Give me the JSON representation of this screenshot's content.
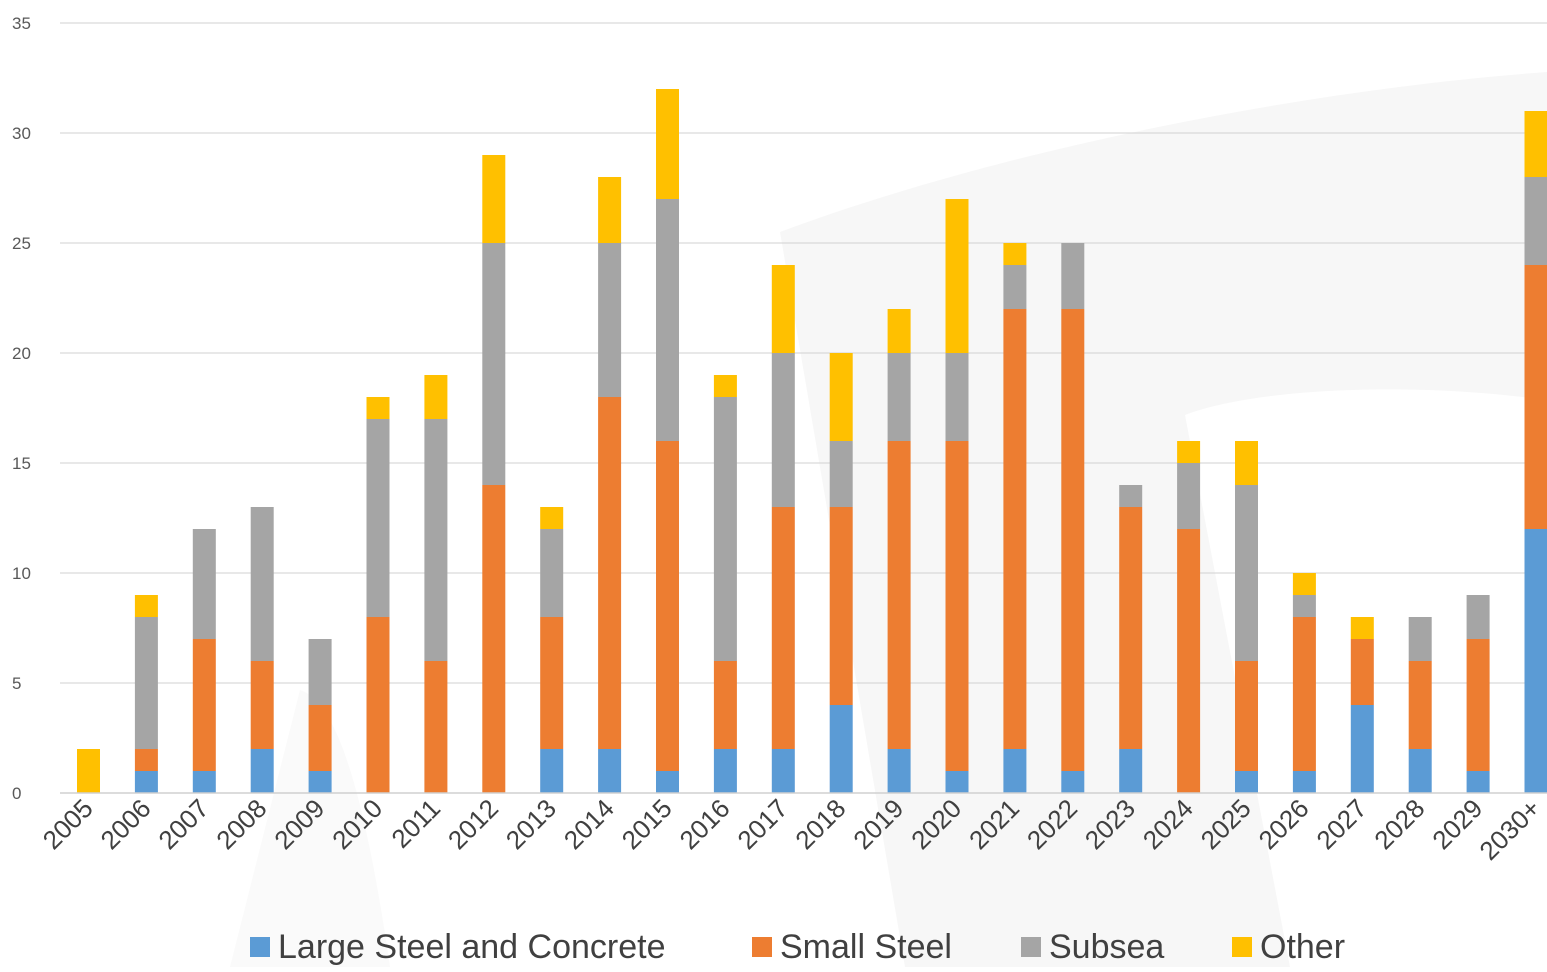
{
  "chart_data": {
    "type": "bar",
    "stacked": true,
    "title": "",
    "xlabel": "",
    "ylabel": "",
    "ylim": [
      0,
      35
    ],
    "yticks": [
      0,
      5,
      10,
      15,
      20,
      25,
      30,
      35
    ],
    "grid": true,
    "legend_position": "bottom",
    "categories": [
      "2005",
      "2006",
      "2007",
      "2008",
      "2009",
      "2010",
      "2011",
      "2012",
      "2013",
      "2014",
      "2015",
      "2016",
      "2017",
      "2018",
      "2019",
      "2020",
      "2021",
      "2022",
      "2023",
      "2024",
      "2025",
      "2026",
      "2027",
      "2028",
      "2029",
      "2030+"
    ],
    "series": [
      {
        "name": "Large Steel and Concrete",
        "color": "#5b9bd5",
        "values": [
          0,
          1,
          1,
          2,
          1,
          0,
          0,
          0,
          2,
          2,
          1,
          2,
          2,
          4,
          2,
          1,
          2,
          1,
          2,
          0,
          1,
          1,
          4,
          2,
          1,
          12
        ]
      },
      {
        "name": "Small Steel",
        "color": "#ed7d31",
        "values": [
          0,
          1,
          6,
          4,
          3,
          8,
          6,
          14,
          6,
          16,
          15,
          4,
          11,
          9,
          14,
          15,
          20,
          21,
          11,
          12,
          5,
          7,
          3,
          4,
          6,
          12
        ]
      },
      {
        "name": "Subsea",
        "color": "#a5a5a5",
        "values": [
          0,
          6,
          5,
          7,
          3,
          9,
          11,
          11,
          4,
          7,
          11,
          12,
          7,
          3,
          4,
          4,
          2,
          3,
          1,
          3,
          8,
          1,
          0,
          2,
          2,
          4
        ]
      },
      {
        "name": "Other",
        "color": "#ffc000",
        "values": [
          2,
          1,
          0,
          0,
          0,
          1,
          2,
          4,
          1,
          3,
          5,
          1,
          4,
          4,
          2,
          7,
          1,
          0,
          0,
          1,
          2,
          1,
          1,
          0,
          0,
          3
        ]
      }
    ]
  }
}
